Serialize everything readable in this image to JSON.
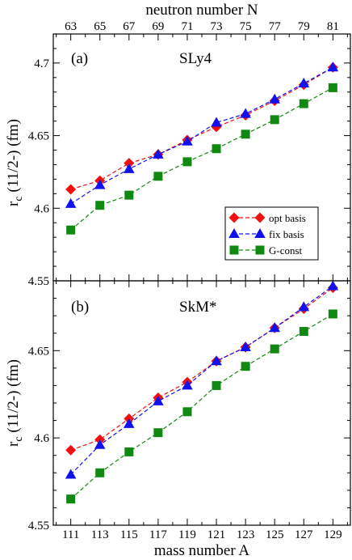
{
  "chart_data": [
    {
      "type": "line",
      "panel_label": "(a)",
      "model_label": "SLy4",
      "top_axis_label": "neutron number N",
      "top_ticks": [
        "63",
        "65",
        "67",
        "69",
        "71",
        "73",
        "75",
        "77",
        "79",
        "81"
      ],
      "ylabel_main": "r",
      "ylabel_sub": "c",
      "ylabel_rest": " (11/2-) (fm)",
      "ylim": [
        4.55,
        4.72
      ],
      "yticks": [
        "4.55",
        "4.6",
        "4.65",
        "4.7"
      ],
      "xlim": [
        109.8,
        130.2
      ],
      "x": [
        111,
        113,
        115,
        117,
        119,
        121,
        123,
        125,
        127,
        129
      ],
      "grid": false,
      "legend_position": "right-lower",
      "series": [
        {
          "name": "opt basis",
          "color": "#ee1111",
          "marker": "diamond",
          "values": [
            4.613,
            4.619,
            4.631,
            4.637,
            4.647,
            4.656,
            4.664,
            4.674,
            4.685,
            4.697
          ]
        },
        {
          "name": "fix basis",
          "color": "#1111ee",
          "marker": "triangle",
          "values": [
            4.603,
            4.616,
            4.627,
            4.637,
            4.646,
            4.659,
            4.665,
            4.675,
            4.686,
            4.697
          ]
        },
        {
          "name": "G-const",
          "color": "#118811",
          "marker": "square",
          "values": [
            4.585,
            4.602,
            4.609,
            4.622,
            4.632,
            4.641,
            4.651,
            4.661,
            4.672,
            4.683
          ]
        }
      ]
    },
    {
      "type": "line",
      "panel_label": "(b)",
      "model_label": "SkM*",
      "xlabel": "mass number A",
      "xticks": [
        "111",
        "113",
        "115",
        "117",
        "119",
        "121",
        "123",
        "125",
        "127",
        "129"
      ],
      "ylabel_main": "r",
      "ylabel_sub": "c",
      "ylabel_rest": " (11/2-) (fm)",
      "ylim": [
        4.55,
        4.69
      ],
      "yticks": [
        "4.55",
        "4.6",
        "4.65"
      ],
      "xlim": [
        109.8,
        130.2
      ],
      "x": [
        111,
        113,
        115,
        117,
        119,
        121,
        123,
        125,
        127,
        129
      ],
      "grid": false,
      "series": [
        {
          "name": "opt basis",
          "color": "#ee1111",
          "marker": "diamond",
          "values": [
            4.593,
            4.599,
            4.611,
            4.623,
            4.632,
            4.644,
            4.652,
            4.663,
            4.674,
            4.686
          ]
        },
        {
          "name": "fix basis",
          "color": "#1111ee",
          "marker": "triangle",
          "values": [
            4.579,
            4.596,
            4.608,
            4.621,
            4.63,
            4.644,
            4.652,
            4.663,
            4.675,
            4.687
          ]
        },
        {
          "name": "G-const",
          "color": "#118811",
          "marker": "square",
          "values": [
            4.565,
            4.58,
            4.592,
            4.603,
            4.615,
            4.63,
            4.641,
            4.651,
            4.661,
            4.671
          ]
        }
      ]
    }
  ]
}
